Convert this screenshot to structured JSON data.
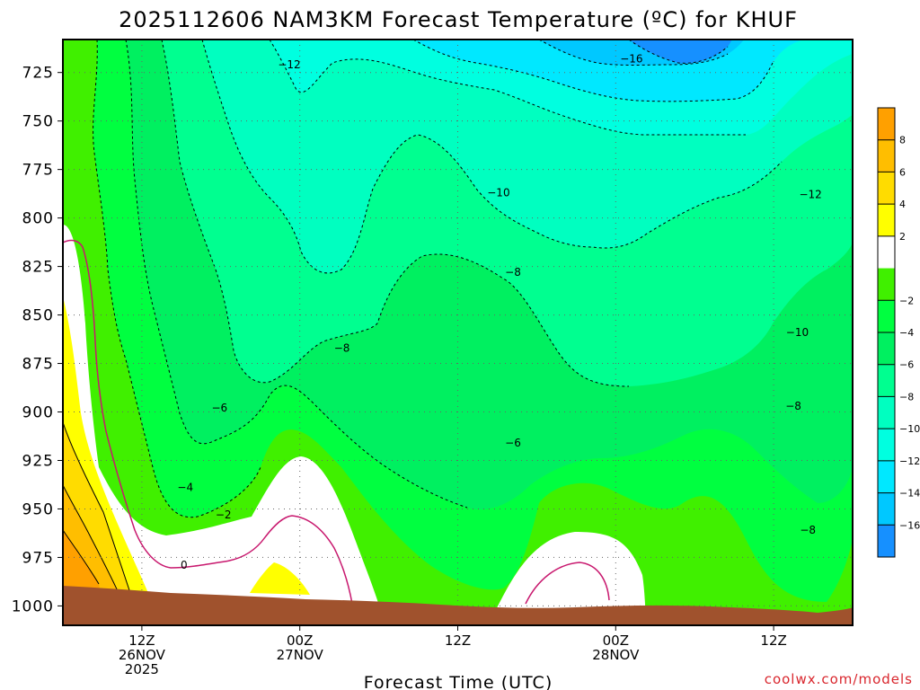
{
  "chart_data": {
    "type": "contour",
    "title": "2025112606 NAM3KM Forecast Temperature (ºC) for KHUF",
    "xlabel": "Forecast Time (UTC)",
    "ylabel": "",
    "y_axis": {
      "unit": "hPa",
      "reversed": true,
      "range": [
        708,
        1010
      ],
      "ticks": [
        725,
        750,
        775,
        800,
        825,
        850,
        875,
        900,
        925,
        950,
        975,
        1000
      ]
    },
    "x_axis": {
      "unit": "hours after 2025-11-26 06Z",
      "range": [
        0,
        60
      ],
      "ticks": [
        {
          "hour": 6,
          "lines": [
            "12Z",
            "26NOV",
            "2025"
          ]
        },
        {
          "hour": 18,
          "lines": [
            "00Z",
            "27NOV"
          ]
        },
        {
          "hour": 30,
          "lines": [
            "12Z"
          ]
        },
        {
          "hour": 42,
          "lines": [
            "00Z",
            "28NOV"
          ]
        },
        {
          "hour": 54,
          "lines": [
            "12Z"
          ]
        }
      ]
    },
    "grid": true,
    "colorbar": {
      "placement": "right",
      "levels": [
        {
          "label": "8",
          "value": 8,
          "color": "#ffa000"
        },
        {
          "label": "6",
          "value": 6,
          "color": "#ffbe00"
        },
        {
          "label": "4",
          "value": 4,
          "color": "#ffdc00"
        },
        {
          "label": "2",
          "value": 2,
          "color": "#ffff00"
        },
        {
          "label": "",
          "value": 0,
          "color": "#ffffff"
        },
        {
          "label": "−2",
          "value": -2,
          "color": "#40f000"
        },
        {
          "label": "−4",
          "value": -4,
          "color": "#00ff40"
        },
        {
          "label": "−6",
          "value": -6,
          "color": "#00f060"
        },
        {
          "label": "−8",
          "value": -8,
          "color": "#00ff90"
        },
        {
          "label": "−10",
          "value": -10,
          "color": "#00ffc0"
        },
        {
          "label": "−12",
          "value": -12,
          "color": "#00ffe0"
        },
        {
          "label": "−14",
          "value": -14,
          "color": "#00e8ff"
        },
        {
          "label": "−16",
          "value": -16,
          "color": "#00c8ff"
        },
        {
          "label": "",
          "value": -18,
          "color": "#1690ff"
        }
      ]
    },
    "contour_labels": [
      {
        "text": "−16",
        "hour": 43.2,
        "p": 718
      },
      {
        "text": "−12",
        "hour": 17.2,
        "p": 721
      },
      {
        "text": "−12",
        "hour": 56.8,
        "p": 788
      },
      {
        "text": "−10",
        "hour": 33.1,
        "p": 787
      },
      {
        "text": "−10",
        "hour": 55.8,
        "p": 859
      },
      {
        "text": "−8",
        "hour": 34.2,
        "p": 828
      },
      {
        "text": "−8",
        "hour": 21.2,
        "p": 867
      },
      {
        "text": "−8",
        "hour": 55.5,
        "p": 897
      },
      {
        "text": "−8",
        "hour": 56.6,
        "p": 961
      },
      {
        "text": "−6",
        "hour": 11.9,
        "p": 898
      },
      {
        "text": "−6",
        "hour": 34.2,
        "p": 916
      },
      {
        "text": "−4",
        "hour": 9.3,
        "p": 939
      },
      {
        "text": "−2",
        "hour": 12.2,
        "p": 953
      },
      {
        "text": "0",
        "hour": 9.2,
        "p": 979
      }
    ]
  },
  "xtick_lines": {
    "t0": [
      "12Z",
      "26NOV",
      "2025"
    ],
    "t1": [
      "00Z",
      "27NOV"
    ],
    "t2": [
      "12Z"
    ],
    "t3": [
      "00Z",
      "28NOV"
    ],
    "t4": [
      "12Z"
    ]
  },
  "credit": "coolwx.com/models",
  "colors": {
    "ground": "#a0522d",
    "zero_line": "#c8186e",
    "frame": "#000000"
  }
}
